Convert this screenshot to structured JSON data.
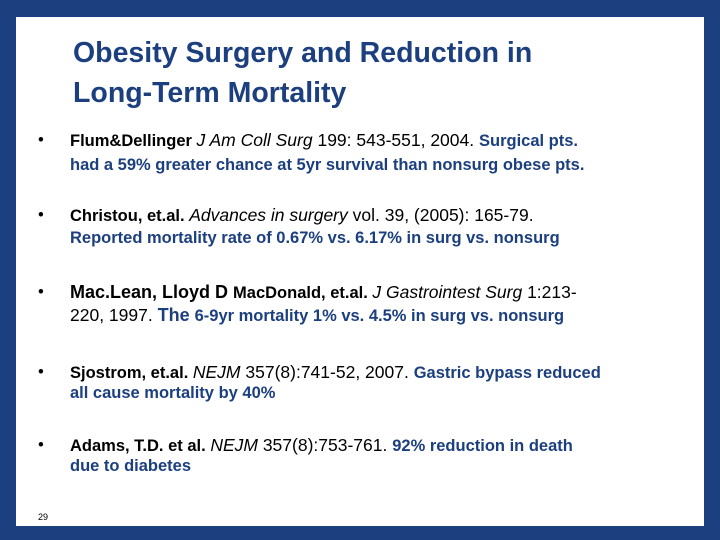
{
  "slide": {
    "title_line1": "Obesity Surgery and Reduction in",
    "title_line2": "Long-Term Mortality",
    "page_number": "29"
  },
  "bullets": [
    {
      "author": "Flum&Dellinger",
      "journal": "J Am Coll Surg",
      "citation": " 199: 543-551, 2004. ",
      "finding_a": "Surgical pts.",
      "finding_b": "had a 59% greater chance at 5yr survival than nonsurg obese pts."
    },
    {
      "author": "Christou, et.al.",
      "journal": "Advances in surgery",
      "citation": " vol. 39, (2005): 165-79.",
      "finding": "Reported mortality rate of 0.67% vs. 6.17% in surg vs. nonsurg"
    },
    {
      "author_a": "Mac.Lean, Lloyd D ",
      "author_b": "MacDonald, et.al.",
      "journal": "J Gastrointest Surg",
      "citation_a": " 1:213-",
      "citation_b": "220, 1997. ",
      "the": "The ",
      "finding": "6-9yr mortality 1% vs. 4.5% in surg vs. nonsurg"
    },
    {
      "author": "Sjostrom, et.al.",
      "journal": "NEJM",
      "citation": " 357(8):741-52, 2007. ",
      "finding_a": "Gastric bypass reduced",
      "finding_b": "all cause mortality by 40%"
    },
    {
      "author": "Adams, T.D. et al.",
      "journal": "NEJM",
      "citation": "  357(8):753-761. ",
      "finding_a": "92% reduction in death",
      "finding_b": "due to diabetes"
    }
  ],
  "bullet_glyph": "•",
  "colors": {
    "frame": "#1b3f7f",
    "title": "#1b3f7f",
    "finding": "#1b3f7f"
  }
}
